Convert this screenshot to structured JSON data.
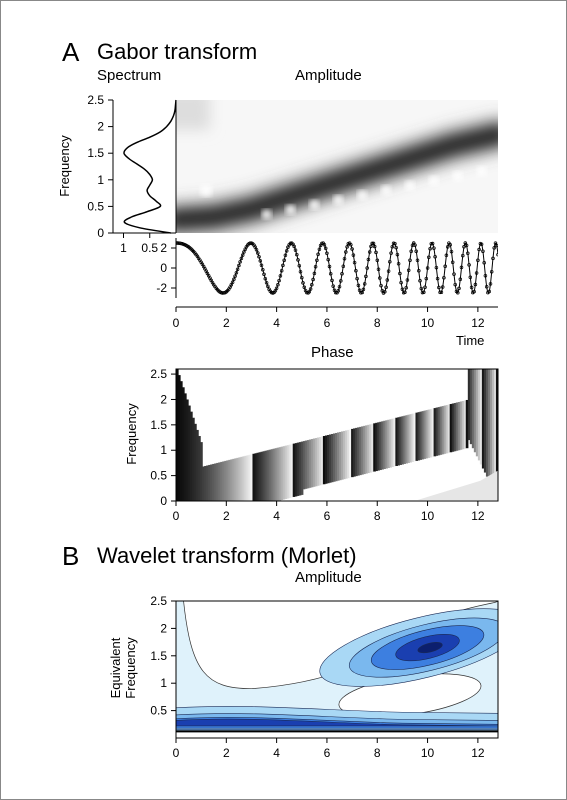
{
  "panel_a": {
    "letter": "A",
    "title": "Gabor transform",
    "spectrum_label": "Spectrum",
    "amplitude_label": "Amplitude",
    "phase_label": "Phase",
    "ylabel": "Frequency",
    "time_label": "Time"
  },
  "panel_b": {
    "letter": "B",
    "title": "Wavelet transform (Morlet)",
    "amplitude_label": "Amplitude",
    "ylabel_line1": "Equivalent",
    "ylabel_line2": "Frequency"
  },
  "colors": {
    "wavelet_dark": "#1a3fb0",
    "wavelet_mid": "#3d7fe0",
    "wavelet_light": "#a9d8f5",
    "wavelet_pale": "#dff2fb"
  },
  "chart_data": [
    {
      "type": "line",
      "panel": "Spectrum",
      "xlim": [
        1.2,
        0
      ],
      "ylim": [
        0,
        2.5
      ],
      "x_ticks": [
        "1",
        "0.5"
      ],
      "x_tick_values": [
        1,
        0.5
      ],
      "y_ticks": [
        "0",
        "0.5",
        "1",
        "1.5",
        "2",
        "2.5"
      ],
      "y_tick_values": [
        0,
        0.5,
        1,
        1.5,
        2,
        2.5
      ],
      "frequency": [
        0,
        0.1,
        0.2,
        0.3,
        0.4,
        0.5,
        0.6,
        0.7,
        0.8,
        0.9,
        1.0,
        1.1,
        1.2,
        1.3,
        1.4,
        1.5,
        1.6,
        1.7,
        1.8,
        1.9,
        2.0,
        2.1,
        2.2,
        2.3,
        2.4,
        2.5
      ],
      "magnitude": [
        0.1,
        0.7,
        0.98,
        0.85,
        0.55,
        0.3,
        0.38,
        0.5,
        0.55,
        0.5,
        0.45,
        0.5,
        0.6,
        0.75,
        0.9,
        0.99,
        0.93,
        0.75,
        0.5,
        0.3,
        0.18,
        0.1,
        0.05,
        0.02,
        0.01,
        0
      ]
    },
    {
      "type": "heatmap",
      "panel": "Amplitude",
      "colormap": "grayscale (black = high)",
      "xlim": [
        0,
        12.8
      ],
      "ylim": [
        0,
        2.5
      ],
      "y_ticks": [
        "0",
        "0.5",
        "1",
        "1.5",
        "2",
        "2.5"
      ],
      "y_tick_values": [
        0,
        0.5,
        1,
        1.5,
        2,
        2.5
      ],
      "ridge": {
        "time": [
          0,
          1.5,
          3,
          5,
          7,
          9,
          11,
          12.8
        ],
        "frequency": [
          0.25,
          0.3,
          0.45,
          0.75,
          1.05,
          1.35,
          1.65,
          1.85
        ]
      }
    },
    {
      "type": "line",
      "panel": "Signal",
      "xlim": [
        0,
        12.8
      ],
      "ylim": [
        -3,
        3
      ],
      "x_ticks": [
        "0",
        "2",
        "4",
        "6",
        "8",
        "10",
        "12"
      ],
      "x_tick_values": [
        0,
        2,
        4,
        6,
        8,
        10,
        12
      ],
      "y_ticks": [
        "2",
        "0",
        "-2"
      ],
      "y_tick_values": [
        2,
        0,
        -2
      ],
      "amplitude": 2.5,
      "chirp": {
        "start_frequency": 0.15,
        "end_frequency": 1.75,
        "duration": 12.8
      },
      "markers": "small open circles along the curve"
    },
    {
      "type": "heatmap",
      "panel": "Phase",
      "colormap": "grayscale sawtooth (phase wraps)",
      "xlim": [
        0,
        12.8
      ],
      "ylim": [
        0,
        2.6
      ],
      "x_ticks": [
        "0",
        "2",
        "4",
        "6",
        "8",
        "10",
        "12"
      ],
      "x_tick_values": [
        0,
        2,
        4,
        6,
        8,
        10,
        12
      ],
      "y_ticks": [
        "0",
        "0.5",
        "1",
        "1.5",
        "2",
        "2.5"
      ],
      "y_tick_values": [
        0,
        0.5,
        1,
        1.5,
        2,
        2.5
      ]
    },
    {
      "type": "heatmap",
      "panel": "Wavelet Amplitude",
      "colormap": "filled contours, blue (high) to white (low)",
      "xlim": [
        0,
        12.8
      ],
      "ylim": [
        0,
        2.5
      ],
      "x_ticks": [
        "0",
        "2",
        "4",
        "6",
        "8",
        "10",
        "12"
      ],
      "x_tick_values": [
        0,
        2,
        4,
        6,
        8,
        10,
        12
      ],
      "y_ticks": [
        "0.5",
        "1",
        "1.5",
        "2",
        "2.5"
      ],
      "y_tick_values": [
        0.5,
        1,
        1.5,
        2,
        2.5
      ],
      "peak": {
        "time": 10,
        "frequency": 1.65
      }
    }
  ]
}
